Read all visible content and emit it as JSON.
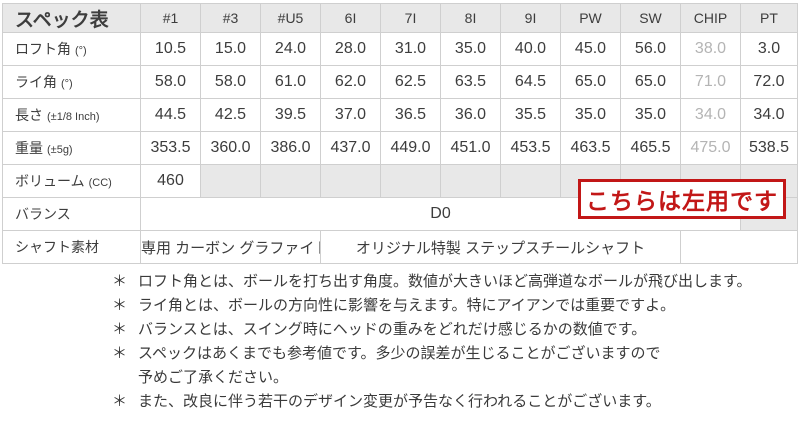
{
  "table": {
    "title": "スペック表",
    "columns": [
      "#1",
      "#3",
      "#U5",
      "6I",
      "7I",
      "8I",
      "9I",
      "PW",
      "SW",
      "CHIP",
      "PT"
    ],
    "muted_column": "CHIP",
    "spec_rows": [
      {
        "label": "ロフト角",
        "unit": "(°)",
        "values": [
          "10.5",
          "15.0",
          "24.0",
          "28.0",
          "31.0",
          "35.0",
          "40.0",
          "45.0",
          "56.0",
          "38.0",
          "3.0"
        ]
      },
      {
        "label": "ライ角",
        "unit": "(°)",
        "values": [
          "58.0",
          "58.0",
          "61.0",
          "62.0",
          "62.5",
          "63.5",
          "64.5",
          "65.0",
          "65.0",
          "71.0",
          "72.0"
        ]
      },
      {
        "label": "長さ",
        "unit": "(±1/8 Inch)",
        "values": [
          "44.5",
          "42.5",
          "39.5",
          "37.0",
          "36.5",
          "36.0",
          "35.5",
          "35.0",
          "35.0",
          "34.0",
          "34.0"
        ]
      },
      {
        "label": "重量",
        "unit": "(±5g)",
        "values": [
          "353.5",
          "360.0",
          "386.0",
          "437.0",
          "449.0",
          "451.0",
          "453.5",
          "463.5",
          "465.5",
          "475.0",
          "538.5"
        ]
      }
    ],
    "volume_row": {
      "label": "ボリューム",
      "unit": "(CC)",
      "value": "460"
    },
    "balance_row": {
      "label": "バランス",
      "value": "D0"
    },
    "shaft_row": {
      "label": "シャフト素材",
      "driver_shaft": "専用 カーボン グラファイト",
      "iron_shaft": "オリジナル特製 ステップスチールシャフト"
    }
  },
  "overlay": {
    "text": "こちらは左用です"
  },
  "notes": {
    "marker": "＊",
    "items": [
      "ロフト角とは、ボールを打ち出す角度。数値が大きいほど高弾道なボールが飛び出します。",
      "ライ角とは、ボールの方向性に影響を与えます。特にアイアンでは重要ですよ。",
      "バランスとは、スイング時にヘッドの重みをどれだけ感じるかの数値です。",
      "スペックはあくまでも参考値です。多少の誤差が生じることがございますので\n予めご了承ください。",
      "また、改良に伴う若干のデザイン変更が予告なく行われることがございます。"
    ]
  },
  "colors": {
    "accent_red": "#c21717",
    "muted_text": "#b4b4b4",
    "header_bg": "#e8e8e8",
    "grid_border": "#cfcfcf"
  }
}
